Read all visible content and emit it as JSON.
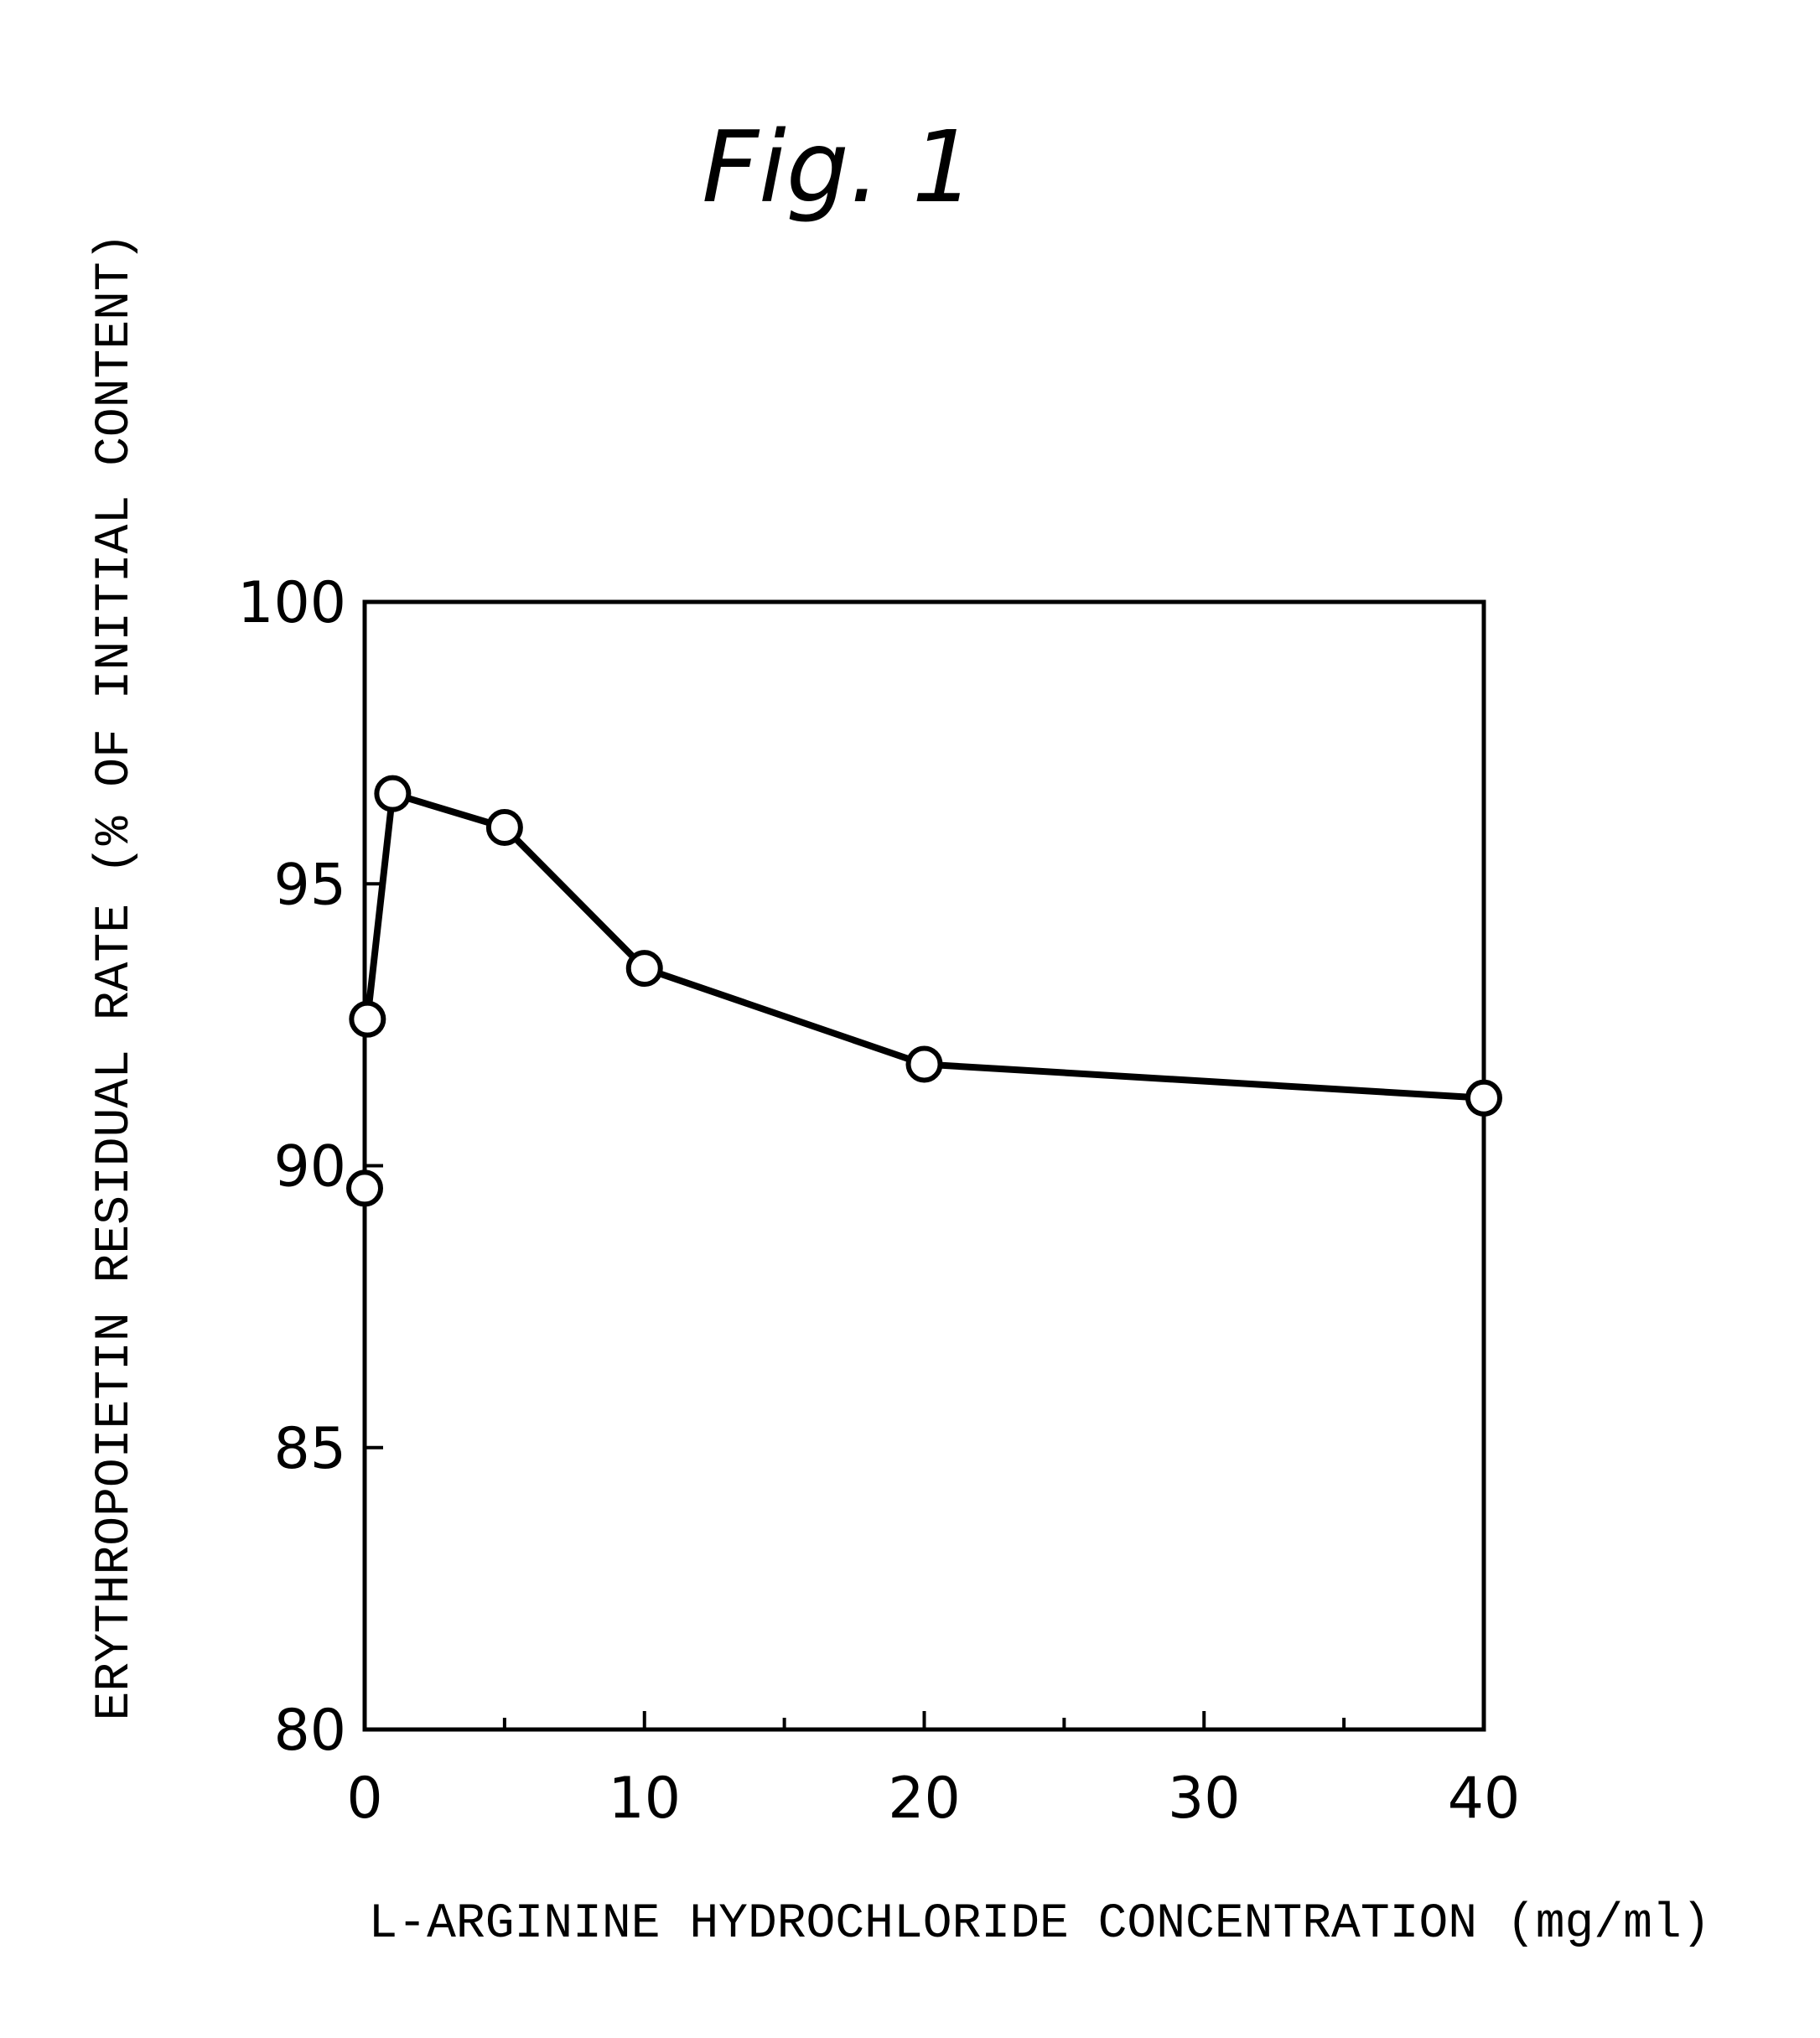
{
  "figure_label": "Fig. 1",
  "chart_data": {
    "type": "scatter",
    "title": "Fig. 1",
    "xlabel": "L-ARGININE HYDROCHLORIDE CONCENTRATION (mg/ml)",
    "ylabel": "ERYTHROPOIETIN RESIDUAL RATE (% OF INITIAL CONTENT)",
    "xlim": [
      0,
      40
    ],
    "ylim": [
      80,
      100
    ],
    "x_ticks": [
      0,
      10,
      20,
      30,
      40
    ],
    "x_minor_ticks": [
      5,
      15,
      25,
      35
    ],
    "y_ticks": [
      80,
      85,
      90,
      95,
      100
    ],
    "grid": false,
    "connected_line": {
      "x": [
        0.1,
        1,
        5,
        10,
        20,
        40
      ],
      "y": [
        92.6,
        96.6,
        96.0,
        93.5,
        91.8,
        91.2
      ]
    },
    "points": [
      {
        "x": 0,
        "y": 89.6
      },
      {
        "x": 0.1,
        "y": 92.6
      },
      {
        "x": 1,
        "y": 96.6
      },
      {
        "x": 5,
        "y": 96.0
      },
      {
        "x": 10,
        "y": 93.5
      },
      {
        "x": 20,
        "y": 91.8
      },
      {
        "x": 40,
        "y": 91.2
      }
    ]
  }
}
